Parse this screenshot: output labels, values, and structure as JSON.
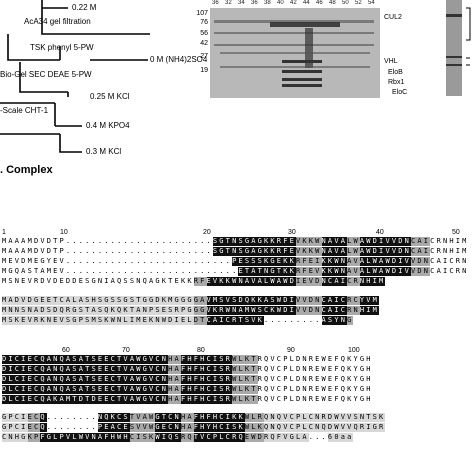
{
  "purification": {
    "steps": [
      {
        "id": "s1",
        "text": "0.22 M"
      },
      {
        "id": "s2",
        "text": "AcA34 gel filtration"
      },
      {
        "id": "s3",
        "text": "TSK phenyl 5-PW"
      },
      {
        "id": "s4",
        "text": "0 M (NH4)2SO4"
      },
      {
        "id": "s5",
        "text": "Bio-Gel SEC DEAE 5-PW"
      },
      {
        "id": "s6",
        "text": "0.25 M KCl"
      },
      {
        "id": "s7",
        "text": "-Scale CHT-1"
      },
      {
        "id": "s8",
        "text": "0.4 M KPO4"
      },
      {
        "id": "s9",
        "text": "0.3 M KCl"
      }
    ],
    "complex_label": ". Complex"
  },
  "gel": {
    "lanes": [
      "36",
      "32",
      "34",
      "36",
      "38",
      "40",
      "42",
      "44",
      "46",
      "48",
      "50",
      "52",
      "54"
    ],
    "mw_markers": [
      "107",
      "76",
      "56",
      "42",
      "27",
      "19"
    ],
    "bands": {
      "cul2": "CUL2",
      "vhl": "VHL",
      "elob": "EloB",
      "rbx1": "Rbx1",
      "eloc": "EloC"
    }
  },
  "alignment": {
    "ruler": [
      "1",
      "10",
      "20",
      "30",
      "40",
      "50",
      "60",
      "70",
      "80",
      "90",
      "100"
    ],
    "block1": [
      "MAAAMDVDTP.......................SGTNSGAGKKRFEVKKWNAVALWAWDIVVDNCAICRNHIM",
      "MAAAMDVDTP.......................SGTNSGAGKKRFEVKKWNAVALWAWDIVVDNCAICRNHIM",
      "MEVDMEGYEV..........................PESSSKGEKKRFEIKKWNAVALWAWDIVVDNCAICRNHIM",
      "MGQASTAMEV...........................ETATNGTKKRFEVKKWNAVALWAWDIVVDNCAICRNHIM",
      "MSNEVRDVDEDDESGNIAQSSNQAGKTEKKRFEVKKWNAVALWAWDIEVDNCAICRNHIM"
    ],
    "block2": [
      "MADVDGEETCALASHSGSSGSTGGDKMGGGGAVMSVSDQKKASWDIVVDNCAICRCYVM",
      "MNNSNADSDQRGSTASQKQKTANPSESRPGGGVKRWNAMWSCKWDIVVDNCAICRNHIM",
      "MSKEVRKNEVSGPSMSKWNLIMEKNWDIELDTCAICRTSVK.........ASYNG"
    ],
    "block3": [
      "DICIECQANQASATSEECTVAWGVCNHAFHFHCISRWLKTRQVCPLDNREWEFQKYGH",
      "DICIECQANQASATSEECTVAWGVCNHAFHFHCISRWLKTRQVCPLDNREWEFQKYGH",
      "DLCIECQANQASATSEECTVAWGVCNHAFHFHCISRWLKTRQVCPLDNREWEFQKYGH",
      "DLCIECQANQASATSEECTVAWGVCNHAFHFHCISRWLKTRQVCPLDNREWEFQKYGH",
      "DLCIECQAKAMTDTDEECTVAWGVCNHAFHFHCISRWLKTRQVCPLDNREWEFQKYGH"
    ],
    "block4": [
      "GPCIECQ........NQKCSTVAWGTCNHAFHFHCIKKWLRQNQVCPLCNRDWVVSNTSK",
      "GPCIECQ........PEACESVVWGECNHAFHYHCISKWLKQNQVCPLCNQDWVVQRIGR",
      "CNHGKPFGLPVLWVNAFHWHCISKWIQSRQTVCPLCRQEWDRQFVGLA...60aa"
    ]
  }
}
